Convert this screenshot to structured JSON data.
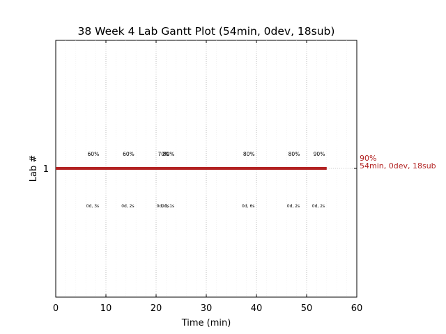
{
  "chart_data": {
    "type": "gantt",
    "title": "38 Week 4 Lab Gantt Plot (54min, 0dev, 18sub)",
    "xlabel": "Time (min)",
    "ylabel": "Lab #",
    "xlim": [
      0,
      60
    ],
    "x_ticks": [
      0,
      10,
      20,
      30,
      40,
      50,
      60
    ],
    "y_ticks": [
      "1"
    ],
    "grid": "vertical dotted",
    "bar": {
      "lab": "1",
      "start": 0,
      "end": 54,
      "color": "#b22222"
    },
    "end_label": {
      "line1": "90%",
      "line2": "54min, 0dev, 18sub"
    },
    "annotations": [
      {
        "x": 7.5,
        "pct": "60%",
        "sub": "0d, 3s"
      },
      {
        "x": 14.5,
        "pct": "60%",
        "sub": "0d, 2s"
      },
      {
        "x": 21.5,
        "pct": "70%",
        "sub": "0d, 1s"
      },
      {
        "x": 22.5,
        "pct": "80%",
        "sub": "0d, 1s"
      },
      {
        "x": 38.5,
        "pct": "80%",
        "sub": "0d, 6s"
      },
      {
        "x": 47.5,
        "pct": "80%",
        "sub": "0d, 2s"
      },
      {
        "x": 52.5,
        "pct": "90%",
        "sub": "0d, 2s"
      }
    ]
  }
}
